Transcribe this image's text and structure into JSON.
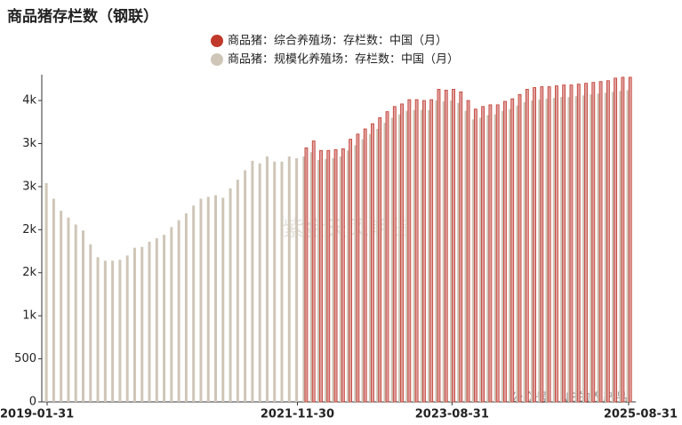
{
  "chart_data": {
    "type": "bar",
    "title": "商品猪存栏数（钢联）",
    "watermark": "紫金天风期货",
    "source_note": "公众号 · NB的农产品",
    "categories": [
      "2019-01-31",
      null,
      null,
      null,
      null,
      null,
      null,
      null,
      null,
      null,
      null,
      null,
      null,
      null,
      null,
      null,
      null,
      null,
      null,
      null,
      null,
      null,
      null,
      null,
      null,
      null,
      null,
      null,
      null,
      null,
      null,
      null,
      null,
      null,
      "2021-11-30",
      null,
      null,
      null,
      null,
      null,
      null,
      null,
      null,
      null,
      null,
      null,
      null,
      null,
      null,
      null,
      null,
      null,
      null,
      null,
      null,
      "2023-08-31",
      null,
      null,
      null,
      null,
      null,
      null,
      null,
      null,
      null,
      null,
      null,
      null,
      null,
      null,
      null,
      null,
      null,
      null,
      null,
      null,
      null,
      null,
      null,
      "2025-08-31"
    ],
    "series": [
      {
        "name": "商品猪：综合养殖场：存栏数：中国（月）",
        "color": "#c0392b",
        "fill": "#e0a0a0",
        "values": [
          null,
          null,
          null,
          null,
          null,
          null,
          null,
          null,
          null,
          null,
          null,
          null,
          null,
          null,
          null,
          null,
          null,
          null,
          null,
          null,
          null,
          null,
          null,
          null,
          null,
          null,
          null,
          null,
          null,
          null,
          null,
          null,
          null,
          null,
          null,
          2950,
          3030,
          2920,
          2920,
          2930,
          2940,
          3050,
          3110,
          3170,
          3230,
          3300,
          3370,
          3430,
          3460,
          3510,
          3510,
          3500,
          3510,
          3630,
          3620,
          3630,
          3600,
          3500,
          3400,
          3430,
          3450,
          3450,
          3490,
          3520,
          3570,
          3630,
          3650,
          3660,
          3660,
          3670,
          3680,
          3680,
          3690,
          3700,
          3710,
          3720,
          3730,
          3760,
          3770,
          3770
        ]
      },
      {
        "name": "商品猪：规模化养殖场：存栏数：中国（月）",
        "color": "#cfc6b8",
        "fill": "#cfc6b8",
        "values": [
          2540,
          2360,
          2220,
          2140,
          2060,
          1990,
          1830,
          1680,
          1640,
          1640,
          1650,
          1700,
          1790,
          1800,
          1860,
          1900,
          1940,
          2030,
          2110,
          2190,
          2280,
          2360,
          2380,
          2400,
          2370,
          2480,
          2580,
          2690,
          2800,
          2770,
          2850,
          2790,
          2790,
          2850,
          2830,
          2850,
          2900,
          2810,
          2820,
          2830,
          2850,
          2920,
          2980,
          3050,
          3110,
          3170,
          3240,
          3300,
          3340,
          3380,
          3390,
          3390,
          3390,
          3500,
          3490,
          3500,
          3470,
          3380,
          3280,
          3300,
          3330,
          3340,
          3380,
          3400,
          3440,
          3480,
          3500,
          3510,
          3520,
          3530,
          3540,
          3540,
          3550,
          3560,
          3570,
          3580,
          3590,
          3600,
          3610,
          3620
        ]
      }
    ],
    "ylim": [
      0,
      3800
    ],
    "yticks": [
      0,
      500,
      {
        "value": 1000,
        "label": "1k"
      },
      {
        "value": 1500,
        "label": "2k"
      },
      {
        "value": 2000,
        "label": "2k"
      },
      {
        "value": 2500,
        "label": "3k"
      },
      {
        "value": 3000,
        "label": "3k"
      },
      {
        "value": 3500,
        "label": "4k"
      }
    ],
    "grid": false,
    "legend": "top"
  }
}
